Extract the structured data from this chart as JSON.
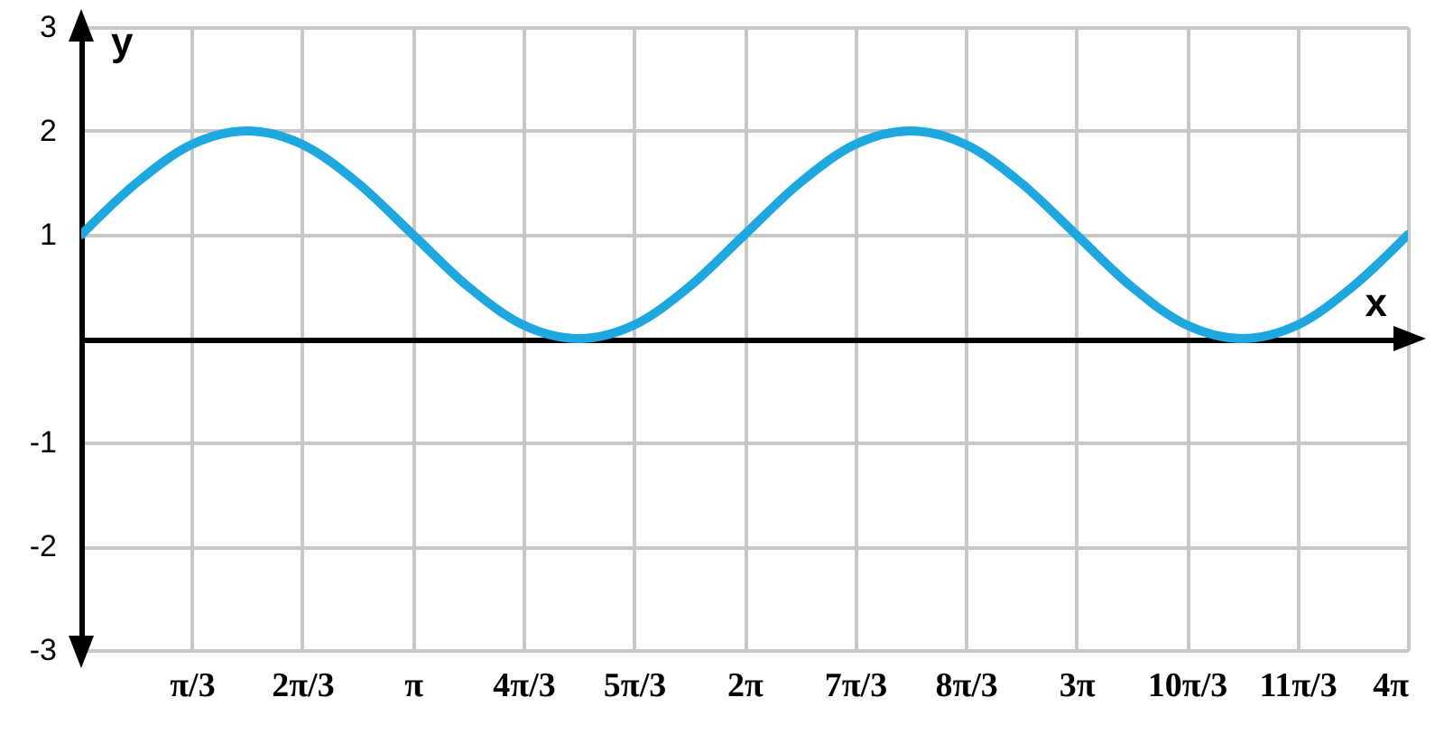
{
  "chart_data": {
    "type": "line",
    "xlabel": "x",
    "ylabel": "y",
    "x": [
      0,
      0.524,
      1.047,
      1.571,
      2.094,
      2.618,
      3.142,
      3.665,
      4.189,
      4.712,
      5.236,
      5.76,
      6.283,
      6.807,
      7.33,
      7.854,
      8.378,
      8.901,
      9.425,
      9.948,
      10.472,
      10.996,
      11.519,
      12.043,
      12.566
    ],
    "series": [
      {
        "color": "#1fa8e0",
        "values": [
          1,
          1.5,
          1.87,
          2,
          1.87,
          1.5,
          1,
          0.5,
          0.13,
          0,
          0.13,
          0.5,
          1,
          1.5,
          1.87,
          2,
          1.87,
          1.5,
          1,
          0.5,
          0.13,
          0,
          0.13,
          0.5,
          1
        ]
      }
    ],
    "xlim": [
      0,
      12.566
    ],
    "ylim": [
      -3,
      3
    ],
    "xticks": [
      {
        "value": 1.047,
        "label": "π/3"
      },
      {
        "value": 2.094,
        "label": "2π/3"
      },
      {
        "value": 3.142,
        "label": "π"
      },
      {
        "value": 4.189,
        "label": "4π/3"
      },
      {
        "value": 5.236,
        "label": "5π/3"
      },
      {
        "value": 6.283,
        "label": "2π"
      },
      {
        "value": 7.33,
        "label": "7π/3"
      },
      {
        "value": 8.378,
        "label": "8π/3"
      },
      {
        "value": 9.425,
        "label": "3π"
      },
      {
        "value": 10.472,
        "label": "10π/3"
      },
      {
        "value": 11.519,
        "label": "11π/3"
      },
      {
        "value": 12.566,
        "label": "4π"
      }
    ],
    "yticks": [
      -3,
      -2,
      -1,
      {
        "value": 0,
        "label": null
      },
      1,
      2,
      3
    ],
    "grid": true,
    "marker": "none",
    "line_style": "solid"
  }
}
